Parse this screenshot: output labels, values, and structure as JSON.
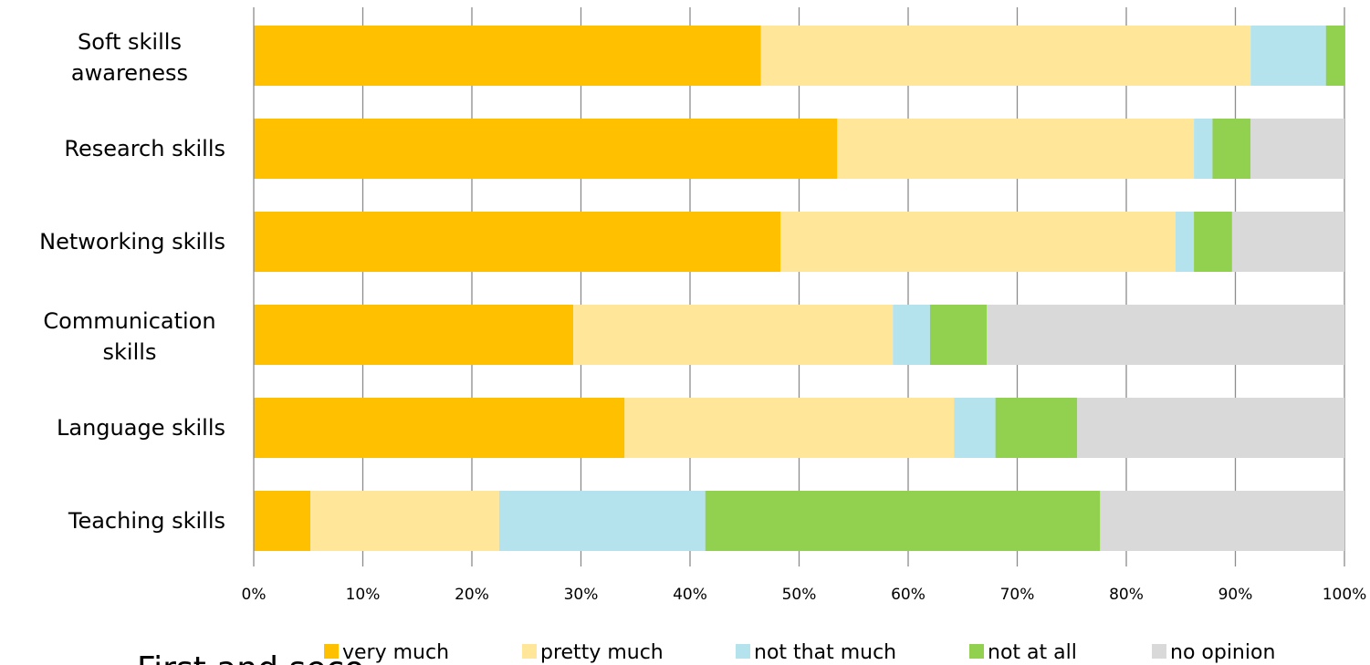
{
  "chart_data": {
    "type": "bar",
    "orientation": "horizontal",
    "stacked": true,
    "normalized": true,
    "categories": [
      "Soft skills awareness",
      "Research skills",
      "Networking skills",
      "Communication skills",
      "Language skills",
      "Teaching skills"
    ],
    "series": [
      {
        "name": "very much",
        "color": "#FFC000",
        "values": [
          46.5,
          53.5,
          48.3,
          29.3,
          34.0,
          5.2
        ]
      },
      {
        "name": "pretty much",
        "color": "#FFE699",
        "values": [
          44.9,
          32.7,
          36.2,
          29.3,
          30.2,
          17.3
        ]
      },
      {
        "name": "not that much",
        "color": "#B4E3ED",
        "values": [
          6.9,
          1.7,
          1.7,
          3.4,
          3.8,
          18.9
        ]
      },
      {
        "name": "not at all",
        "color": "#92D050",
        "values": [
          1.7,
          3.5,
          3.5,
          5.2,
          7.5,
          36.2
        ]
      },
      {
        "name": "no opinion",
        "color": "#D9D9D9",
        "values": [
          0.0,
          8.6,
          10.3,
          32.8,
          24.5,
          22.4
        ]
      }
    ],
    "xticks": [
      "0%",
      "10%",
      "20%",
      "30%",
      "40%",
      "50%",
      "60%",
      "70%",
      "80%",
      "90%",
      "100%"
    ],
    "xlim": [
      0,
      100
    ],
    "grid": true,
    "legend_position": "bottom",
    "title": "",
    "xlabel": "",
    "ylabel": ""
  },
  "cropped_text": "First and seco"
}
